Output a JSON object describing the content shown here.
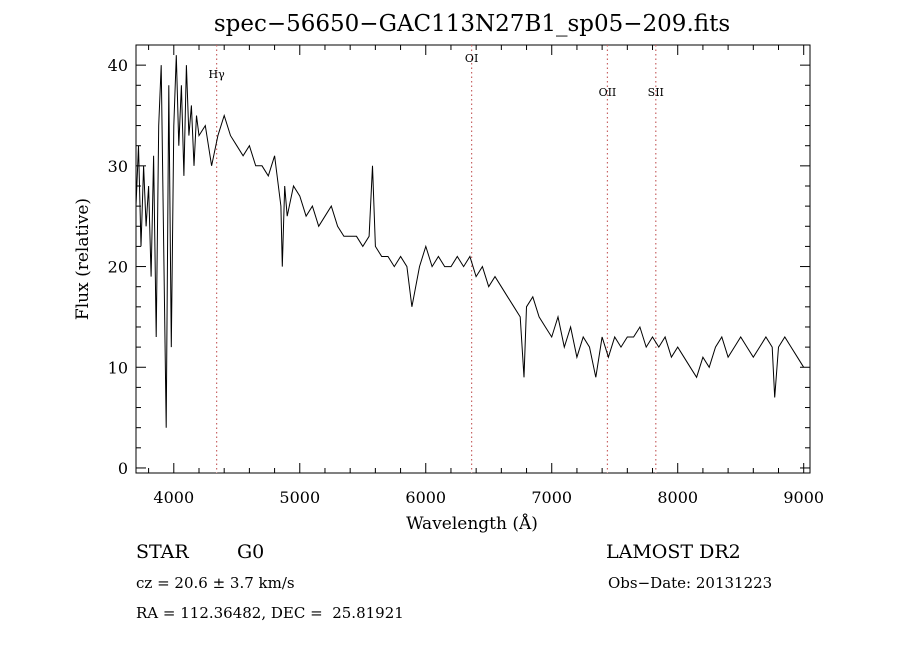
{
  "chart_data": {
    "type": "line",
    "title": "spec−56650−GAC113N27B1_sp05−209.fits",
    "xlabel": "Wavelength (Å)",
    "ylabel": "Flux (relative)",
    "xlim": [
      3700,
      9050
    ],
    "ylim": [
      -0.5,
      42
    ],
    "xticks": [
      4000,
      5000,
      6000,
      7000,
      8000,
      9000
    ],
    "yticks": [
      0,
      10,
      20,
      30,
      40
    ],
    "grid": false,
    "line_color": "#000000",
    "marker_color": "#c86464",
    "lines": [
      {
        "label": "Hγ",
        "x": 4340
      },
      {
        "label": "OI",
        "x": 6364
      },
      {
        "label": "OII",
        "x": 7442
      },
      {
        "label": "SII",
        "x": 7826
      }
    ],
    "series": [
      {
        "x": [
          3700,
          3720,
          3740,
          3760,
          3780,
          3800,
          3820,
          3840,
          3860,
          3880,
          3900,
          3920,
          3940,
          3960,
          3980,
          4000,
          4020,
          4040,
          4060,
          4080,
          4100,
          4120,
          4140,
          4160,
          4180,
          4200,
          4250,
          4300,
          4350,
          4400,
          4450,
          4500,
          4550,
          4600,
          4650,
          4700,
          4750,
          4800,
          4850,
          4861,
          4880,
          4900,
          4950,
          5000,
          5050,
          5100,
          5150,
          5200,
          5250,
          5300,
          5350,
          5400,
          5450,
          5500,
          5550,
          5577,
          5600,
          5650,
          5700,
          5750,
          5800,
          5850,
          5890,
          5950,
          6000,
          6050,
          6100,
          6150,
          6200,
          6250,
          6300,
          6350,
          6400,
          6450,
          6500,
          6550,
          6600,
          6650,
          6700,
          6750,
          6780,
          6800,
          6850,
          6900,
          6950,
          7000,
          7050,
          7100,
          7150,
          7200,
          7250,
          7300,
          7350,
          7400,
          7450,
          7500,
          7550,
          7600,
          7650,
          7700,
          7750,
          7800,
          7850,
          7900,
          7950,
          8000,
          8050,
          8100,
          8150,
          8200,
          8250,
          8300,
          8350,
          8400,
          8450,
          8500,
          8550,
          8600,
          8650,
          8700,
          8750,
          8770,
          8800,
          8850,
          8900,
          8950,
          9000
        ],
        "values": [
          26,
          32,
          22,
          30,
          24,
          28,
          19,
          31,
          13,
          34,
          40,
          22,
          4,
          38,
          12,
          34,
          41,
          32,
          38,
          29,
          40,
          33,
          36,
          30,
          35,
          33,
          34,
          30,
          33,
          35,
          33,
          32,
          31,
          32,
          30,
          30,
          29,
          31,
          26,
          20,
          28,
          25,
          28,
          27,
          25,
          26,
          24,
          25,
          26,
          24,
          23,
          23,
          23,
          22,
          23,
          30,
          22,
          21,
          21,
          20,
          21,
          20,
          16,
          20,
          22,
          20,
          21,
          20,
          20,
          21,
          20,
          21,
          19,
          20,
          18,
          19,
          18,
          17,
          16,
          15,
          9,
          16,
          17,
          15,
          14,
          13,
          15,
          12,
          14,
          11,
          13,
          12,
          9,
          13,
          11,
          13,
          12,
          13,
          13,
          14,
          12,
          13,
          12,
          13,
          11,
          12,
          11,
          10,
          9,
          11,
          10,
          12,
          13,
          11,
          12,
          13,
          12,
          11,
          12,
          13,
          12,
          7,
          12,
          13,
          12,
          11,
          10
        ]
      }
    ]
  },
  "info": {
    "object_class": "STAR",
    "subclass": "G0",
    "survey": "LAMOST DR2",
    "redshift": "cz = 20.6 ± 3.7 km/s",
    "obs_date": "Obs−Date: 20131223",
    "coords": "RA = 112.36482, DEC =  25.81921"
  }
}
